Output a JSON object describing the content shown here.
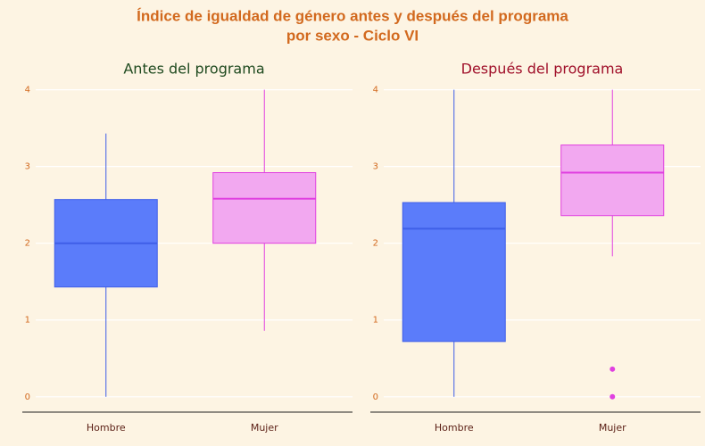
{
  "title": [
    "Índice de igualdad de género antes y después del programa",
    "por sexo - Ciclo VI"
  ],
  "chart_data": [
    {
      "type": "box",
      "title": "Antes del programa",
      "title_color": "#1f4a1f",
      "categories": [
        "Hombre",
        "Mujer"
      ],
      "ylim": [
        -0.2,
        4.1
      ],
      "yticks": [
        0,
        1,
        2,
        3,
        4
      ],
      "grid": true,
      "boxes": [
        {
          "color": "#5b7cfa",
          "line_color": "#3f5fe8",
          "whisker_low": 0,
          "q1": 1.43,
          "median": 2.0,
          "q3": 2.57,
          "whisker_high": 3.43,
          "outliers": []
        },
        {
          "color": "#f2a8f0",
          "line_color": "#e040e0",
          "whisker_low": 0.86,
          "q1": 2.0,
          "median": 2.58,
          "q3": 2.92,
          "whisker_high": 4,
          "outliers": []
        }
      ]
    },
    {
      "type": "box",
      "title": "Después del programa",
      "title_color": "#a0102a",
      "categories": [
        "Hombre",
        "Mujer"
      ],
      "ylim": [
        -0.2,
        4.1
      ],
      "yticks": [
        0,
        1,
        2,
        3,
        4
      ],
      "grid": true,
      "boxes": [
        {
          "color": "#5b7cfa",
          "line_color": "#3f5fe8",
          "whisker_low": 0,
          "q1": 0.72,
          "median": 2.19,
          "q3": 2.53,
          "whisker_high": 4,
          "outliers": []
        },
        {
          "color": "#f2a8f0",
          "line_color": "#e040e0",
          "whisker_low": 1.83,
          "q1": 2.36,
          "median": 2.92,
          "q3": 3.28,
          "whisker_high": 4,
          "outliers": [
            0.36,
            0
          ]
        }
      ]
    }
  ]
}
